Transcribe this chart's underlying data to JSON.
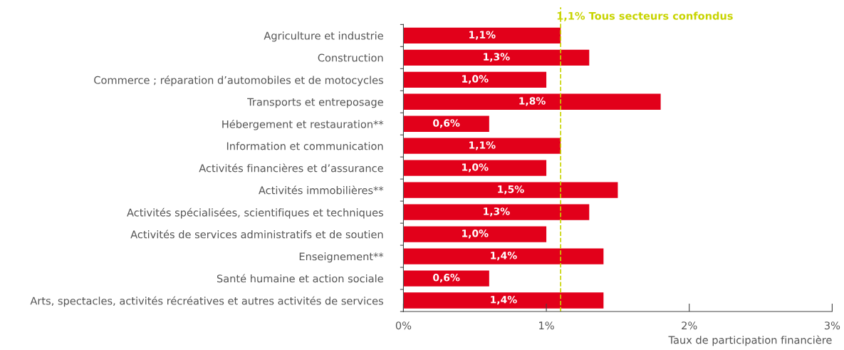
{
  "chart_data": {
    "type": "bar",
    "orientation": "horizontal",
    "categories": [
      "Agriculture et industrie",
      "Construction",
      "Commerce ; réparation d’automobiles et de motocycles",
      "Transports et entreposage",
      "Hébergement et restauration**",
      "Information et communication",
      "Activités financières et d’assurance",
      "Activités immobilières**",
      "Activités spécialisées, scientifiques et techniques",
      "Activités de services administratifs et de soutien",
      "Enseignement**",
      "Santé humaine et action sociale",
      "Arts, spectacles, activités récréatives et autres activités de services"
    ],
    "values": [
      1.1,
      1.3,
      1.0,
      1.8,
      0.6,
      1.1,
      1.0,
      1.5,
      1.3,
      1.0,
      1.4,
      0.6,
      1.4
    ],
    "value_labels": [
      "1,1%",
      "1,3%",
      "1,0%",
      "1,8%",
      "0,6%",
      "1,1%",
      "1,0%",
      "1,5%",
      "1,3%",
      "1,0%",
      "1,4%",
      "0,6%",
      "1,4%"
    ],
    "color": "#e2001a",
    "xlabel": "Taux de participation financière",
    "xlim": [
      0,
      3
    ],
    "xticks": [
      {
        "value": 0,
        "label": "0%"
      },
      {
        "value": 1,
        "label": "1%"
      },
      {
        "value": 2,
        "label": "2%"
      },
      {
        "value": 3,
        "label": "3%"
      }
    ],
    "ref_lines": [
      {
        "axis": "x",
        "value": 1.1,
        "label": "1,1% Tous secteurs confondus",
        "color": "#c8d400",
        "line_style": "dashed"
      }
    ],
    "grid": false
  }
}
